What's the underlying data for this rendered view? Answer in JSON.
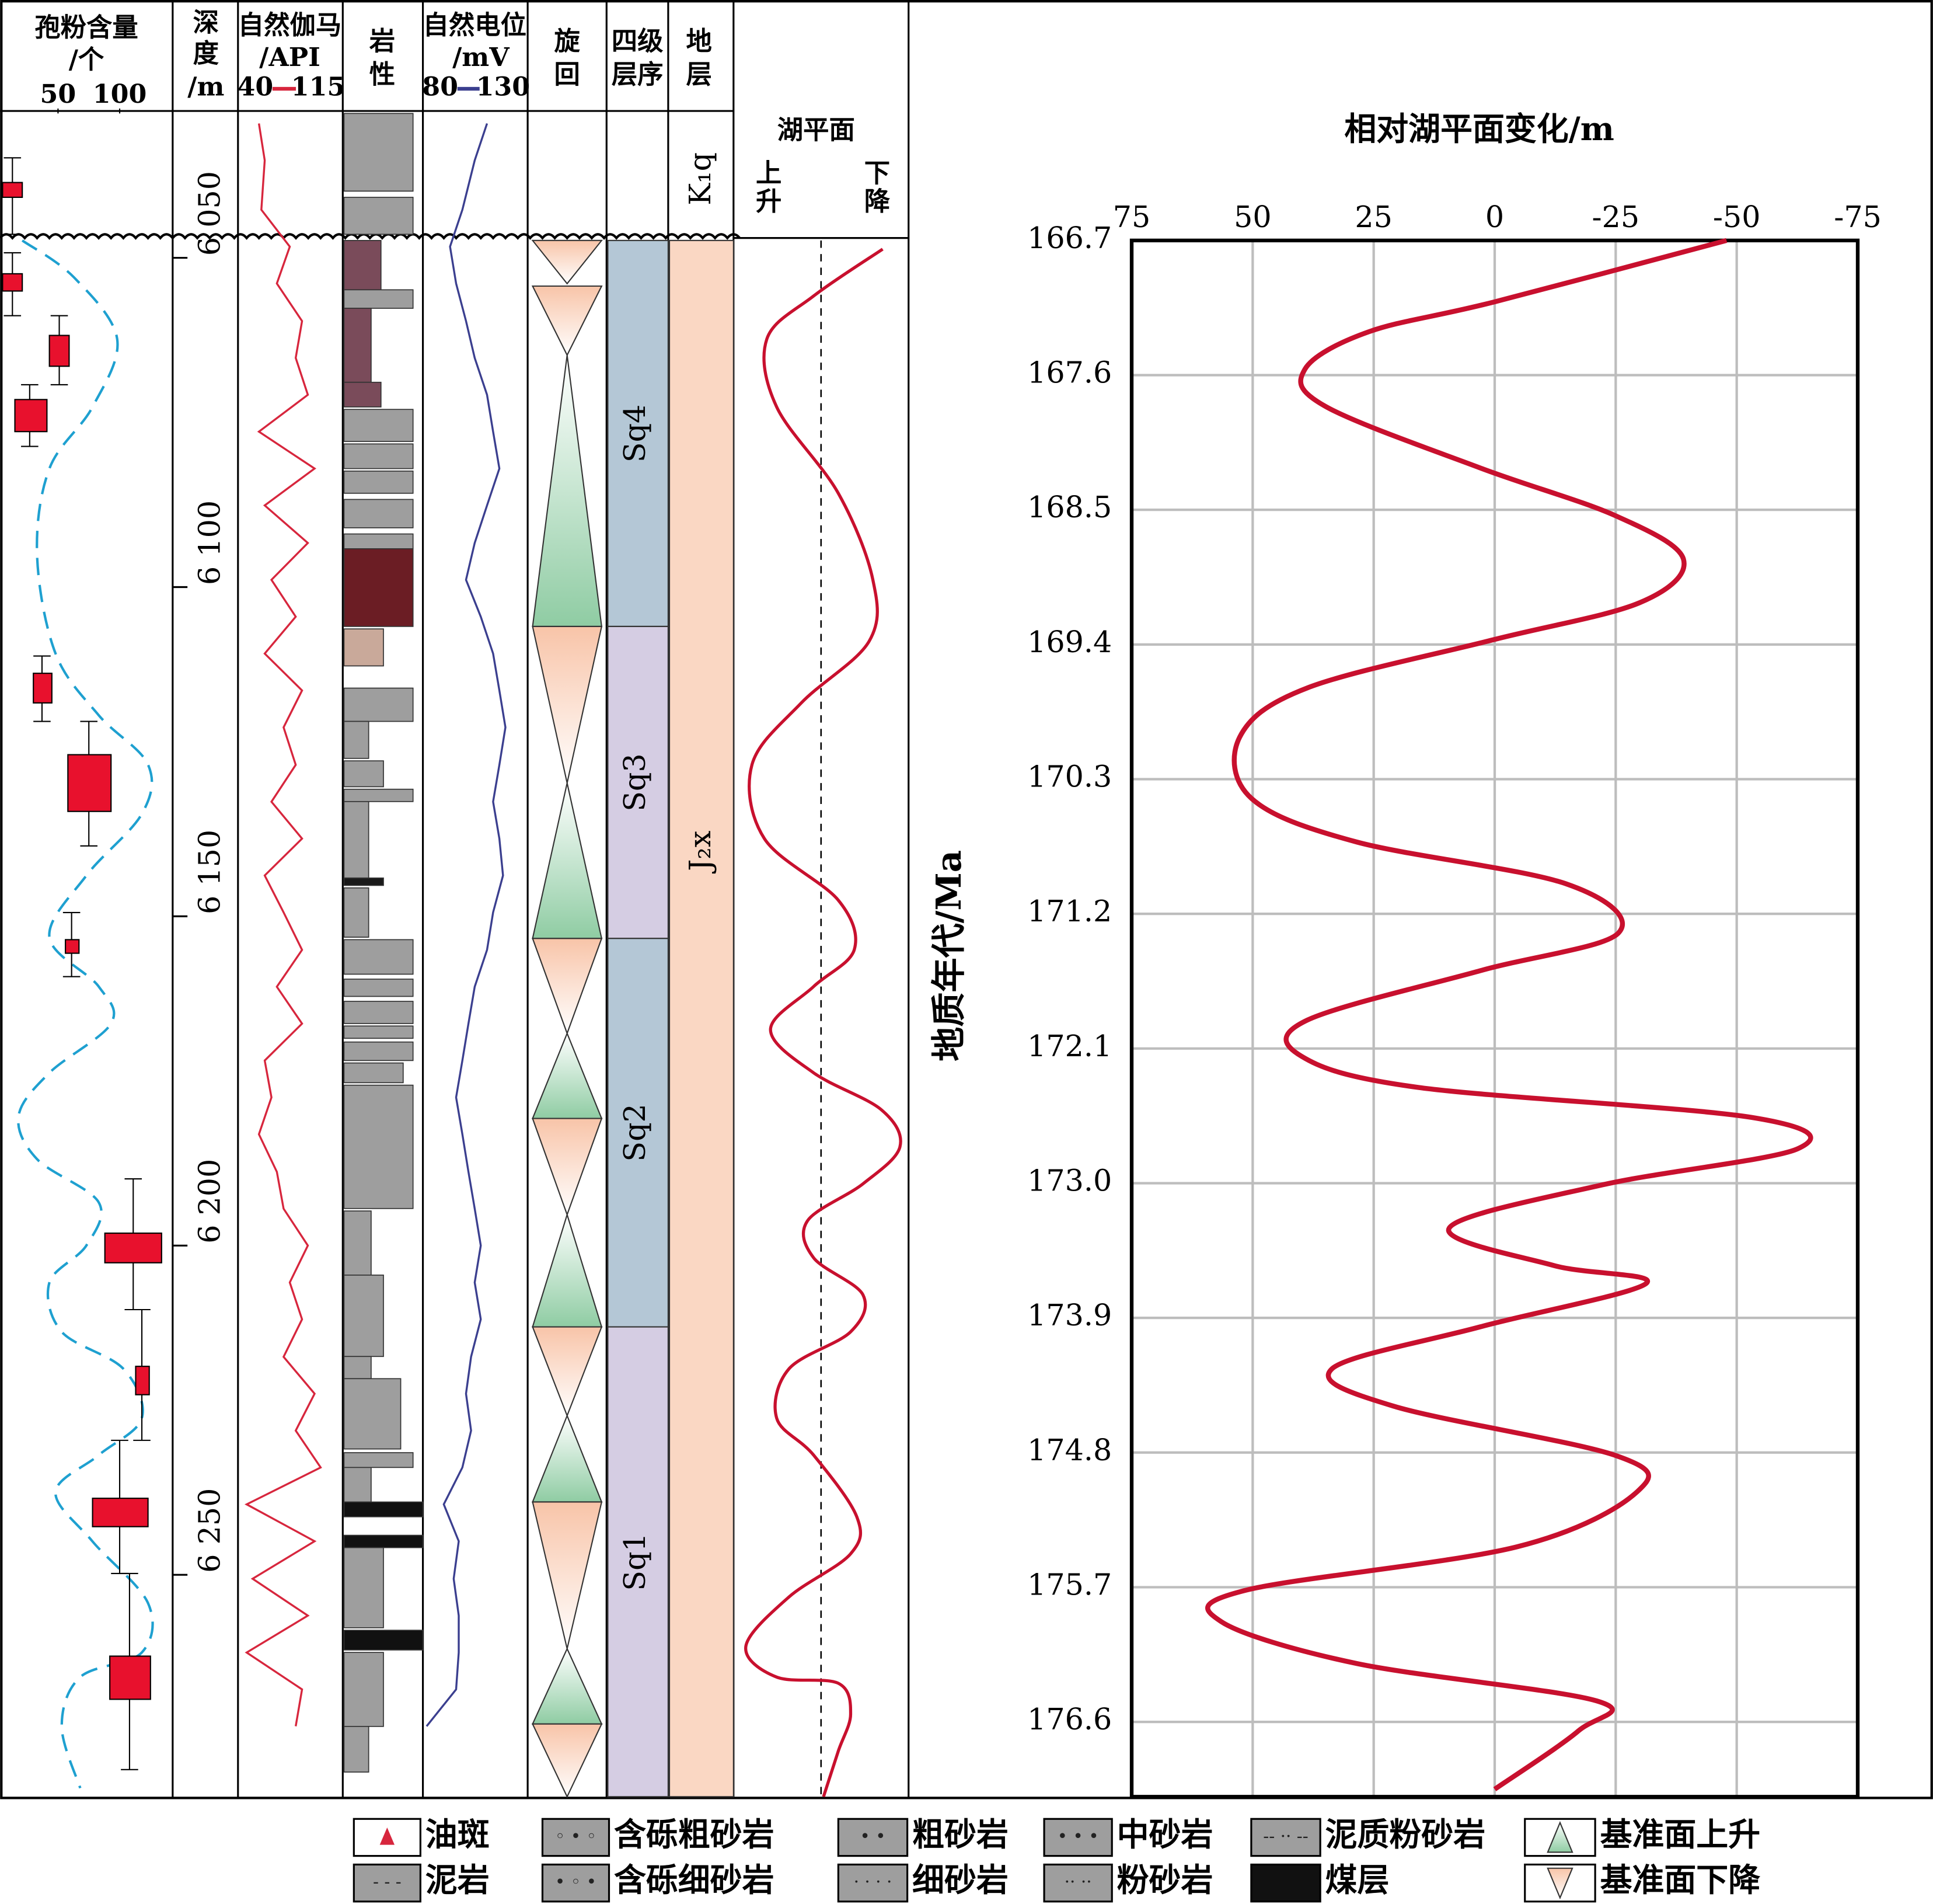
{
  "chart_data": {
    "type": "line",
    "orientation": "vertical",
    "title": "相对湖平面变化/m",
    "x_label": "地质年代/Ma",
    "x": [
      166.7,
      167.11,
      167.31,
      167.56,
      167.81,
      168.22,
      168.54,
      168.83,
      169.12,
      169.37,
      169.69,
      170.02,
      170.43,
      170.72,
      171.0,
      171.33,
      171.58,
      171.91,
      172.15,
      172.36,
      172.56,
      172.77,
      173.01,
      173.3,
      173.55,
      173.67,
      173.96,
      174.24,
      174.49,
      174.82,
      175.06,
      175.43,
      175.72,
      175.93,
      176.21,
      176.46,
      176.66,
      177.05
    ],
    "series": [
      {
        "color": "#c8102e",
        "values": [
          -47.9,
          0,
          26,
          39.2,
          34.9,
          3,
          -25,
          -39,
          -30,
          0.5,
          38.7,
          52.7,
          50.2,
          28.5,
          -14.8,
          -25.5,
          3,
          38.7,
          40,
          15.8,
          -53,
          -62.6,
          -22.4,
          9.4,
          -12.2,
          -31.3,
          3,
          33.6,
          20.9,
          -25,
          -29.5,
          -4.6,
          51.4,
          56.5,
          28.5,
          -21.1,
          -17.3,
          0
        ]
      }
    ],
    "xlim": [
      166.7,
      177.1
    ],
    "xticks": [
      166.7,
      167.6,
      168.5,
      169.4,
      170.3,
      171.2,
      172.1,
      {
        "value": 173,
        "label": "173.0"
      },
      173.9,
      174.8,
      175.7,
      176.6
    ],
    "ylim": [
      75,
      -75
    ],
    "yticks": [
      75,
      50,
      25,
      0,
      -25,
      -50,
      -75
    ],
    "grid": true
  },
  "log_panel": {
    "spore_header": [
      "孢粉含量",
      "/个"
    ],
    "spore_ticks": [
      50,
      100
    ],
    "depth_header": [
      "深",
      "度",
      "/m"
    ],
    "depth_lim": [
      6027.7,
      6283.7
    ],
    "depth_ticks": [
      {
        "value": 6050,
        "label": "6 050"
      },
      {
        "value": 6100,
        "label": "6 100"
      },
      {
        "value": 6150,
        "label": "6 150"
      },
      {
        "value": 6200,
        "label": "6 200"
      },
      {
        "value": 6250,
        "label": "6 250"
      }
    ],
    "gamma_header": [
      "自然伽马",
      "/API"
    ],
    "gamma_lim": [
      40,
      115
    ],
    "gamma_color": "#d7263d",
    "lithology_header": [
      "岩",
      "性"
    ],
    "sp_header": [
      "自然电位",
      "/mV"
    ],
    "sp_lim": [
      80,
      130
    ],
    "sp_color": "#3b3f8f",
    "cycle_header": [
      "旋",
      "回"
    ],
    "sequence_header": [
      "四级",
      "层序"
    ],
    "strata_header": [
      "地",
      "层"
    ],
    "lake_header": "湖平面",
    "lake_rise": "上升",
    "lake_fall": "下降",
    "sequences": [
      "Sq4",
      "Sq3",
      "Sq2",
      "Sq1"
    ],
    "formations": [
      "K₁q",
      "J₂x"
    ],
    "depth": [
      6029.6,
      6035.2,
      6042.7,
      6048.3,
      6053.9,
      6059.6,
      6065.2,
      6070.8,
      6076.4,
      6082.0,
      6087.6,
      6093.3,
      6098.9,
      6104.5,
      6110.1,
      6115.7,
      6121.3,
      6127.0,
      6132.6,
      6138.2,
      6143.8,
      6149.4,
      6155.1,
      6160.7,
      6166.3,
      6171.9,
      6177.5,
      6183.1,
      6188.8,
      6194.4,
      6200.0,
      6205.6,
      6211.2,
      6216.9,
      6222.5,
      6228.1,
      6233.7,
      6239.3,
      6244.9,
      6250.6,
      6256.2,
      6261.8,
      6267.4,
      6273.0
    ],
    "gamma": [
      53.7,
      58,
      55.5,
      76.6,
      67,
      85.7,
      81,
      90,
      53.7,
      95,
      58,
      90,
      63,
      81,
      58,
      85.7,
      72,
      81,
      63,
      85.7,
      58,
      72,
      85.7,
      67,
      85.7,
      58,
      63,
      53.7,
      67,
      72,
      90,
      76.6,
      85.7,
      72,
      95,
      81,
      99.5,
      44.6,
      95,
      49,
      90,
      44.6,
      85.7,
      81
    ],
    "sp": [
      109.9,
      103.8,
      97.7,
      91.6,
      94.6,
      99.5,
      103.8,
      109.9,
      112.9,
      116,
      109.9,
      103.8,
      99.5,
      106.8,
      112.9,
      116,
      119,
      116,
      112.9,
      116,
      117.8,
      112.9,
      109.9,
      103.8,
      100.7,
      97.7,
      94.6,
      97.7,
      100.7,
      103.8,
      106.8,
      103.8,
      106.8,
      102,
      99.5,
      102,
      97.7,
      88.5,
      95.9,
      93.4,
      95.9,
      95.9,
      94.6,
      80
    ]
  },
  "legend": [
    "油斑",
    "泥岩",
    "含砾粗砂岩",
    "含砾细砂岩",
    "粗砂岩",
    "细砂岩",
    "中砂岩",
    "粉砂岩",
    "泥质粉砂岩",
    "煤层",
    "基准面上升",
    "基准面下降"
  ]
}
